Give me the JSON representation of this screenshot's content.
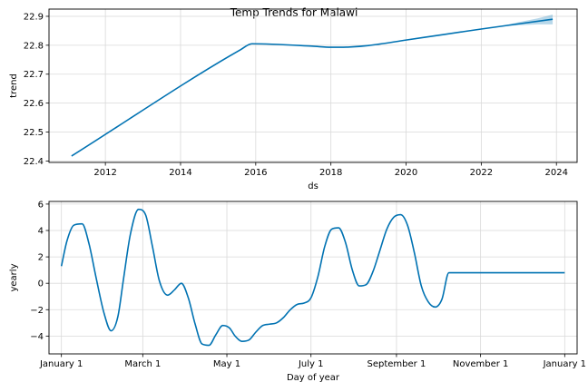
{
  "figure": {
    "title": "Temp Trends for Malawi"
  },
  "chart_data": [
    {
      "type": "line",
      "name": "trend-panel",
      "xlabel": "ds",
      "ylabel": "trend",
      "xlim": [
        2010.5,
        2024.55
      ],
      "ylim": [
        22.395,
        22.925
      ],
      "xticks": [
        2012,
        2014,
        2016,
        2018,
        2020,
        2022,
        2024
      ],
      "xtick_labels": [
        "2012",
        "2014",
        "2016",
        "2018",
        "2020",
        "2022",
        "2024"
      ],
      "yticks": [
        22.4,
        22.5,
        22.6,
        22.7,
        22.8,
        22.9
      ],
      "ytick_labels": [
        "22.4",
        "22.5",
        "22.6",
        "22.7",
        "22.8",
        "22.9"
      ],
      "grid": true,
      "color": "#0072B2",
      "band_color": "#0072B2",
      "series": [
        {
          "x": [
            2011.1,
            2015.6,
            2015.9,
            2017.5,
            2018.0,
            2018.5,
            2019.0,
            2020.0,
            2021.0,
            2022.0,
            2023.0,
            2023.9
          ],
          "y": [
            22.417,
            22.785,
            22.805,
            22.797,
            22.793,
            22.794,
            22.799,
            22.818,
            22.837,
            22.856,
            22.874,
            22.89
          ]
        }
      ],
      "uncertainty": {
        "x": [
          2022.5,
          2023.0,
          2023.5,
          2023.9
        ],
        "lower": [
          22.865,
          22.869,
          22.872,
          22.872
        ],
        "upper": [
          22.865,
          22.88,
          22.893,
          22.906
        ]
      }
    },
    {
      "type": "line",
      "name": "yearly-panel",
      "xlabel": "Day of year",
      "ylabel": "yearly",
      "xlim": [
        -9,
        374
      ],
      "ylim": [
        -5.35,
        6.2
      ],
      "xticks": [
        0,
        59,
        120,
        181,
        243,
        304,
        365
      ],
      "xtick_labels": [
        "January 1",
        "March 1",
        "May 1",
        "July 1",
        "September 1",
        "November 1",
        "January 1"
      ],
      "yticks": [
        -4,
        -2,
        0,
        2,
        4,
        6
      ],
      "ytick_labels": [
        "−4",
        "−2",
        "0",
        "2",
        "4",
        "6"
      ],
      "grid": true,
      "color": "#0072B2",
      "series": [
        {
          "x": [
            0,
            4,
            9,
            15,
            20,
            25,
            31,
            36,
            41,
            45,
            50,
            56,
            61,
            66,
            71,
            77,
            82,
            87,
            92,
            97,
            102,
            107,
            112,
            117,
            122,
            126,
            131,
            136,
            141,
            146,
            151,
            156,
            161,
            166,
            171,
            176,
            181,
            186,
            191,
            196,
            201,
            206,
            211,
            216,
            221,
            226,
            231,
            236,
            241,
            246,
            251,
            256,
            261,
            266,
            271,
            276,
            281,
            286,
            291,
            296,
            301,
            306,
            311,
            316,
            321,
            326,
            331,
            336,
            341,
            346,
            351,
            356,
            361,
            365
          ],
          "y": [
            1.3,
            3.2,
            4.4,
            4.5,
            3.0,
            0.5,
            -2.3,
            -3.6,
            -2.5,
            0.3,
            3.7,
            5.6,
            5.2,
            2.8,
            0.2,
            -0.9,
            -0.5,
            0.0,
            -1.1,
            -3.1,
            -4.6,
            -4.7,
            -3.9,
            -3.2,
            -3.4,
            -4.0,
            -4.4,
            -4.3,
            -3.7,
            -3.2,
            -3.1,
            -3.0,
            -2.6,
            -2.0,
            -1.6,
            -1.5,
            -1.1,
            0.5,
            2.8,
            4.1,
            4.2,
            3.1,
            1.0,
            -0.2,
            -0.1,
            0.9,
            2.5,
            4.1,
            5.0,
            5.2,
            4.4,
            2.3,
            -0.2,
            -1.4,
            -1.8,
            -1.2,
            0.8,
            0.8,
            0.8,
            0.8,
            0.8,
            0.8,
            0.8,
            0.8,
            0.8,
            0.8,
            0.8,
            0.8,
            0.8,
            0.8,
            0.8,
            0.8,
            0.8,
            0.8
          ]
        }
      ]
    }
  ]
}
